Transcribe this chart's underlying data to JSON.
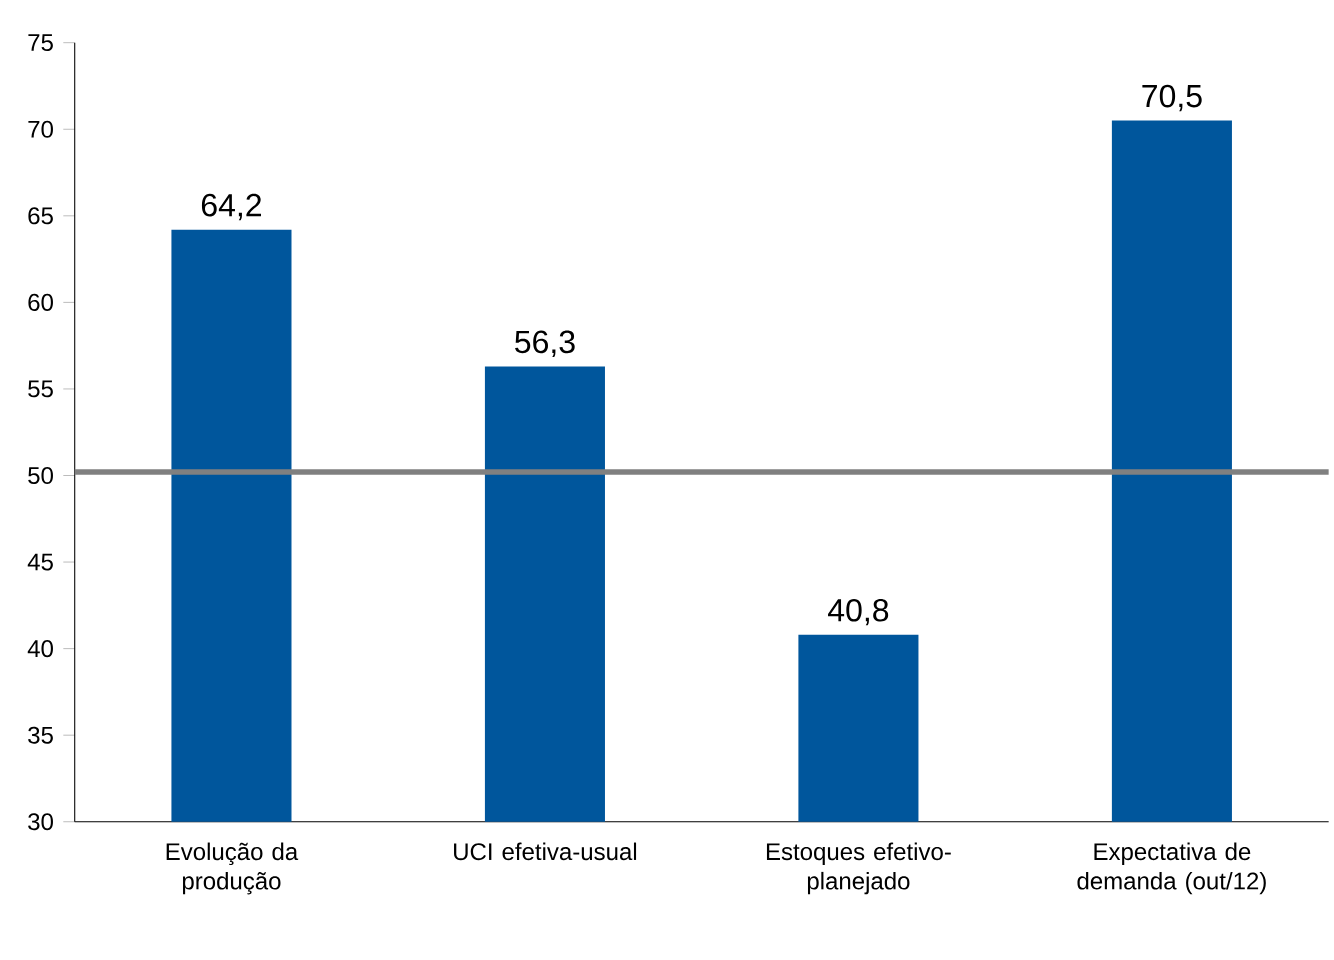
{
  "chart_data": {
    "type": "bar",
    "categories": [
      "Evolução da produção",
      "UCI efetiva-usual",
      "Estoques efetivo-planejado",
      "Expectativa de demanda (out/12)"
    ],
    "values": [
      64.2,
      56.3,
      40.8,
      70.5
    ],
    "value_labels": [
      "64,2",
      "56,3",
      "40,8",
      "70,5"
    ],
    "color": "#00569c",
    "ylim": [
      30,
      75
    ],
    "yticks": [
      30,
      35,
      40,
      45,
      50,
      55,
      60,
      65,
      70,
      75
    ],
    "ref_lines": [
      {
        "axis": "y",
        "value": 50.2,
        "color": "#808080"
      }
    ],
    "grid": false
  }
}
